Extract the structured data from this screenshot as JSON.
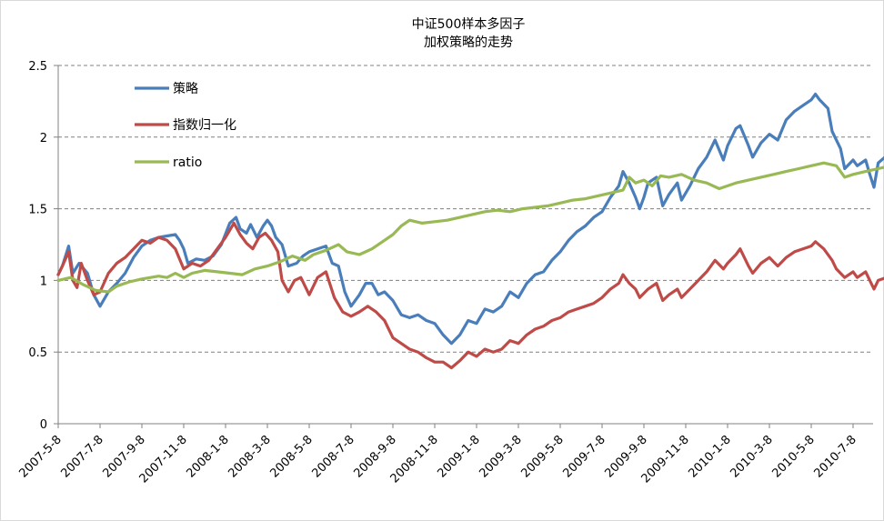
{
  "chart_data": {
    "type": "line",
    "title_lines": [
      "中证500样本多因子",
      "加权策略的走势"
    ],
    "xlabel": "",
    "ylabel": "",
    "ylim": [
      0,
      2.5
    ],
    "yticks": [
      "0",
      "0.5",
      "1",
      "1.5",
      "2",
      "2.5"
    ],
    "grid": "horizontal-dashed",
    "legend_position": "top-left",
    "x_tick_labels": [
      "2007-5-8",
      "2007-7-8",
      "2007-9-8",
      "2007-11-8",
      "2008-1-8",
      "2008-3-8",
      "2008-5-8",
      "2008-7-8",
      "2008-9-8",
      "2008-11-8",
      "2009-1-8",
      "2009-3-8",
      "2009-5-8",
      "2009-7-8",
      "2009-9-8",
      "2009-11-8",
      "2010-1-8",
      "2010-3-8",
      "2010-5-8",
      "2010-7-8"
    ],
    "series": [
      {
        "name": "策略",
        "color": "#4a7ebb",
        "points": [
          [
            0,
            1.04
          ],
          [
            0.1,
            1.1
          ],
          [
            0.25,
            1.24
          ],
          [
            0.35,
            1.05
          ],
          [
            0.5,
            1.12
          ],
          [
            0.7,
            1.05
          ],
          [
            0.85,
            0.9
          ],
          [
            1.0,
            0.82
          ],
          [
            1.2,
            0.92
          ],
          [
            1.4,
            0.98
          ],
          [
            1.6,
            1.05
          ],
          [
            1.8,
            1.16
          ],
          [
            2.0,
            1.24
          ],
          [
            2.2,
            1.28
          ],
          [
            2.4,
            1.3
          ],
          [
            2.6,
            1.31
          ],
          [
            2.8,
            1.32
          ],
          [
            2.9,
            1.28
          ],
          [
            3.0,
            1.22
          ],
          [
            3.1,
            1.12
          ],
          [
            3.3,
            1.15
          ],
          [
            3.5,
            1.14
          ],
          [
            3.7,
            1.17
          ],
          [
            3.9,
            1.25
          ],
          [
            4.1,
            1.4
          ],
          [
            4.25,
            1.44
          ],
          [
            4.35,
            1.36
          ],
          [
            4.5,
            1.33
          ],
          [
            4.6,
            1.39
          ],
          [
            4.75,
            1.3
          ],
          [
            4.9,
            1.38
          ],
          [
            5.0,
            1.42
          ],
          [
            5.1,
            1.38
          ],
          [
            5.2,
            1.3
          ],
          [
            5.35,
            1.25
          ],
          [
            5.5,
            1.1
          ],
          [
            5.7,
            1.12
          ],
          [
            5.85,
            1.17
          ],
          [
            6.0,
            1.2
          ],
          [
            6.2,
            1.22
          ],
          [
            6.4,
            1.24
          ],
          [
            6.55,
            1.12
          ],
          [
            6.7,
            1.1
          ],
          [
            6.85,
            0.92
          ],
          [
            7.0,
            0.82
          ],
          [
            7.2,
            0.9
          ],
          [
            7.35,
            0.98
          ],
          [
            7.5,
            0.98
          ],
          [
            7.65,
            0.9
          ],
          [
            7.8,
            0.92
          ],
          [
            8.0,
            0.86
          ],
          [
            8.2,
            0.76
          ],
          [
            8.4,
            0.74
          ],
          [
            8.6,
            0.76
          ],
          [
            8.8,
            0.72
          ],
          [
            9.0,
            0.7
          ],
          [
            9.2,
            0.62
          ],
          [
            9.4,
            0.56
          ],
          [
            9.6,
            0.62
          ],
          [
            9.8,
            0.72
          ],
          [
            10.0,
            0.7
          ],
          [
            10.2,
            0.8
          ],
          [
            10.4,
            0.78
          ],
          [
            10.6,
            0.82
          ],
          [
            10.8,
            0.92
          ],
          [
            11.0,
            0.88
          ],
          [
            11.2,
            0.98
          ],
          [
            11.4,
            1.04
          ],
          [
            11.6,
            1.06
          ],
          [
            11.8,
            1.14
          ],
          [
            12.0,
            1.2
          ],
          [
            12.2,
            1.28
          ],
          [
            12.4,
            1.34
          ],
          [
            12.6,
            1.38
          ],
          [
            12.8,
            1.44
          ],
          [
            13.0,
            1.48
          ],
          [
            13.2,
            1.58
          ],
          [
            13.4,
            1.66
          ],
          [
            13.5,
            1.76
          ],
          [
            13.65,
            1.68
          ],
          [
            13.8,
            1.58
          ],
          [
            13.9,
            1.5
          ],
          [
            14.0,
            1.58
          ],
          [
            14.1,
            1.68
          ],
          [
            14.3,
            1.72
          ],
          [
            14.45,
            1.52
          ],
          [
            14.6,
            1.6
          ],
          [
            14.8,
            1.68
          ],
          [
            14.9,
            1.56
          ],
          [
            15.1,
            1.66
          ],
          [
            15.3,
            1.78
          ],
          [
            15.5,
            1.86
          ],
          [
            15.7,
            1.98
          ],
          [
            15.9,
            1.84
          ],
          [
            16.0,
            1.94
          ],
          [
            16.2,
            2.06
          ],
          [
            16.3,
            2.08
          ],
          [
            16.5,
            1.94
          ],
          [
            16.6,
            1.86
          ],
          [
            16.8,
            1.96
          ],
          [
            17.0,
            2.02
          ],
          [
            17.2,
            1.98
          ],
          [
            17.4,
            2.12
          ],
          [
            17.6,
            2.18
          ],
          [
            17.8,
            2.22
          ],
          [
            18.0,
            2.26
          ],
          [
            18.1,
            2.3
          ],
          [
            18.2,
            2.26
          ],
          [
            18.4,
            2.2
          ],
          [
            18.5,
            2.04
          ],
          [
            18.7,
            1.92
          ],
          [
            18.8,
            1.78
          ],
          [
            19.0,
            1.84
          ],
          [
            19.1,
            1.8
          ],
          [
            19.3,
            1.84
          ],
          [
            19.4,
            1.74
          ],
          [
            19.5,
            1.65
          ],
          [
            19.6,
            1.82
          ],
          [
            19.8,
            1.87
          ],
          [
            19.9,
            1.91
          ],
          [
            20.05,
            1.96
          ]
        ]
      },
      {
        "name": "指数归一化",
        "color": "#be4b48",
        "points": [
          [
            0,
            1.04
          ],
          [
            0.1,
            1.1
          ],
          [
            0.25,
            1.2
          ],
          [
            0.35,
            1.0
          ],
          [
            0.45,
            0.95
          ],
          [
            0.55,
            1.12
          ],
          [
            0.7,
            1.0
          ],
          [
            0.85,
            0.9
          ],
          [
            1.0,
            0.92
          ],
          [
            1.2,
            1.05
          ],
          [
            1.4,
            1.12
          ],
          [
            1.6,
            1.16
          ],
          [
            1.8,
            1.22
          ],
          [
            2.0,
            1.28
          ],
          [
            2.2,
            1.26
          ],
          [
            2.4,
            1.3
          ],
          [
            2.6,
            1.28
          ],
          [
            2.8,
            1.22
          ],
          [
            2.9,
            1.15
          ],
          [
            3.0,
            1.08
          ],
          [
            3.2,
            1.12
          ],
          [
            3.4,
            1.1
          ],
          [
            3.6,
            1.14
          ],
          [
            3.8,
            1.22
          ],
          [
            4.0,
            1.3
          ],
          [
            4.2,
            1.4
          ],
          [
            4.35,
            1.32
          ],
          [
            4.5,
            1.26
          ],
          [
            4.65,
            1.22
          ],
          [
            4.8,
            1.3
          ],
          [
            4.95,
            1.33
          ],
          [
            5.1,
            1.28
          ],
          [
            5.25,
            1.2
          ],
          [
            5.35,
            1.0
          ],
          [
            5.5,
            0.92
          ],
          [
            5.65,
            1.0
          ],
          [
            5.8,
            1.02
          ],
          [
            6.0,
            0.9
          ],
          [
            6.2,
            1.02
          ],
          [
            6.4,
            1.06
          ],
          [
            6.6,
            0.88
          ],
          [
            6.8,
            0.78
          ],
          [
            7.0,
            0.75
          ],
          [
            7.2,
            0.78
          ],
          [
            7.4,
            0.82
          ],
          [
            7.6,
            0.78
          ],
          [
            7.8,
            0.72
          ],
          [
            8.0,
            0.6
          ],
          [
            8.2,
            0.56
          ],
          [
            8.4,
            0.52
          ],
          [
            8.6,
            0.5
          ],
          [
            8.8,
            0.46
          ],
          [
            9.0,
            0.43
          ],
          [
            9.2,
            0.43
          ],
          [
            9.4,
            0.39
          ],
          [
            9.6,
            0.44
          ],
          [
            9.8,
            0.5
          ],
          [
            10.0,
            0.47
          ],
          [
            10.2,
            0.52
          ],
          [
            10.4,
            0.5
          ],
          [
            10.6,
            0.52
          ],
          [
            10.8,
            0.58
          ],
          [
            11.0,
            0.56
          ],
          [
            11.2,
            0.62
          ],
          [
            11.4,
            0.66
          ],
          [
            11.6,
            0.68
          ],
          [
            11.8,
            0.72
          ],
          [
            12.0,
            0.74
          ],
          [
            12.2,
            0.78
          ],
          [
            12.4,
            0.8
          ],
          [
            12.6,
            0.82
          ],
          [
            12.8,
            0.84
          ],
          [
            13.0,
            0.88
          ],
          [
            13.2,
            0.94
          ],
          [
            13.4,
            0.98
          ],
          [
            13.5,
            1.04
          ],
          [
            13.65,
            0.98
          ],
          [
            13.8,
            0.94
          ],
          [
            13.9,
            0.88
          ],
          [
            14.1,
            0.94
          ],
          [
            14.3,
            0.98
          ],
          [
            14.45,
            0.86
          ],
          [
            14.6,
            0.9
          ],
          [
            14.8,
            0.94
          ],
          [
            14.9,
            0.88
          ],
          [
            15.1,
            0.94
          ],
          [
            15.3,
            1.0
          ],
          [
            15.5,
            1.06
          ],
          [
            15.7,
            1.14
          ],
          [
            15.9,
            1.08
          ],
          [
            16.0,
            1.12
          ],
          [
            16.2,
            1.18
          ],
          [
            16.3,
            1.22
          ],
          [
            16.5,
            1.1
          ],
          [
            16.6,
            1.05
          ],
          [
            16.8,
            1.12
          ],
          [
            17.0,
            1.16
          ],
          [
            17.2,
            1.1
          ],
          [
            17.4,
            1.16
          ],
          [
            17.6,
            1.2
          ],
          [
            17.8,
            1.22
          ],
          [
            18.0,
            1.24
          ],
          [
            18.1,
            1.27
          ],
          [
            18.3,
            1.22
          ],
          [
            18.5,
            1.14
          ],
          [
            18.6,
            1.08
          ],
          [
            18.8,
            1.02
          ],
          [
            19.0,
            1.06
          ],
          [
            19.1,
            1.02
          ],
          [
            19.3,
            1.06
          ],
          [
            19.4,
            1.0
          ],
          [
            19.5,
            0.94
          ],
          [
            19.6,
            1.0
          ],
          [
            19.8,
            1.02
          ],
          [
            19.9,
            1.04
          ],
          [
            20.05,
            1.08
          ]
        ]
      },
      {
        "name": "ratio",
        "color": "#98b954",
        "points": [
          [
            0,
            1.0
          ],
          [
            0.3,
            1.02
          ],
          [
            0.6,
            0.97
          ],
          [
            0.9,
            0.93
          ],
          [
            1.2,
            0.92
          ],
          [
            1.4,
            0.96
          ],
          [
            1.7,
            0.99
          ],
          [
            2.0,
            1.01
          ],
          [
            2.4,
            1.03
          ],
          [
            2.6,
            1.02
          ],
          [
            2.8,
            1.05
          ],
          [
            3.0,
            1.02
          ],
          [
            3.2,
            1.05
          ],
          [
            3.5,
            1.07
          ],
          [
            3.8,
            1.06
          ],
          [
            4.1,
            1.05
          ],
          [
            4.4,
            1.04
          ],
          [
            4.7,
            1.08
          ],
          [
            5.0,
            1.1
          ],
          [
            5.3,
            1.13
          ],
          [
            5.6,
            1.17
          ],
          [
            5.9,
            1.14
          ],
          [
            6.1,
            1.18
          ],
          [
            6.4,
            1.21
          ],
          [
            6.7,
            1.25
          ],
          [
            6.9,
            1.2
          ],
          [
            7.2,
            1.18
          ],
          [
            7.5,
            1.22
          ],
          [
            7.8,
            1.28
          ],
          [
            8.0,
            1.32
          ],
          [
            8.2,
            1.38
          ],
          [
            8.4,
            1.42
          ],
          [
            8.7,
            1.4
          ],
          [
            9.0,
            1.41
          ],
          [
            9.3,
            1.42
          ],
          [
            9.6,
            1.44
          ],
          [
            9.9,
            1.46
          ],
          [
            10.2,
            1.48
          ],
          [
            10.5,
            1.49
          ],
          [
            10.8,
            1.48
          ],
          [
            11.1,
            1.5
          ],
          [
            11.4,
            1.51
          ],
          [
            11.7,
            1.52
          ],
          [
            12.0,
            1.54
          ],
          [
            12.3,
            1.56
          ],
          [
            12.6,
            1.57
          ],
          [
            12.9,
            1.59
          ],
          [
            13.2,
            1.61
          ],
          [
            13.5,
            1.63
          ],
          [
            13.65,
            1.72
          ],
          [
            13.8,
            1.68
          ],
          [
            14.0,
            1.7
          ],
          [
            14.2,
            1.66
          ],
          [
            14.4,
            1.73
          ],
          [
            14.6,
            1.72
          ],
          [
            14.9,
            1.74
          ],
          [
            15.2,
            1.7
          ],
          [
            15.5,
            1.68
          ],
          [
            15.8,
            1.64
          ],
          [
            16.0,
            1.66
          ],
          [
            16.2,
            1.68
          ],
          [
            16.5,
            1.7
          ],
          [
            16.8,
            1.72
          ],
          [
            17.1,
            1.74
          ],
          [
            17.4,
            1.76
          ],
          [
            17.7,
            1.78
          ],
          [
            18.0,
            1.8
          ],
          [
            18.3,
            1.82
          ],
          [
            18.6,
            1.8
          ],
          [
            18.8,
            1.72
          ],
          [
            19.0,
            1.74
          ],
          [
            19.3,
            1.76
          ],
          [
            19.6,
            1.78
          ],
          [
            19.9,
            1.8
          ],
          [
            20.05,
            1.8
          ]
        ]
      }
    ]
  }
}
